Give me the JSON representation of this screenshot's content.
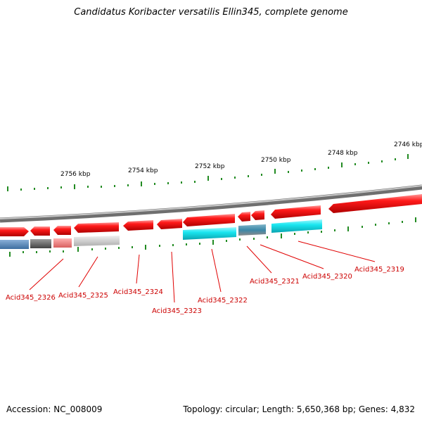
{
  "title": "Candidatus Koribacter versatilis Ellin345, complete genome",
  "scale_labels": [
    "2756 kbp",
    "2754 kbp",
    "2752 kbp",
    "2750 kbp",
    "2748 kbp",
    "2746 kbp"
  ],
  "gene_labels": [
    "Acid345_2326",
    "Acid345_2325",
    "Acid345_2324",
    "Acid345_2323",
    "Acid345_2322",
    "Acid345_2321",
    "Acid345_2320",
    "Acid345_2319"
  ],
  "footer": {
    "accession": "Accession: NC_008009",
    "summary": "Topology: circular; Length: 5,650,368 bp; Genes: 4,832"
  },
  "colors": {
    "forward_gene": "#e8141b",
    "reverse_gene": "#22e6ee",
    "backbone": "#8a8a8a",
    "tick": "#228b22",
    "label": "#cc0000"
  }
}
